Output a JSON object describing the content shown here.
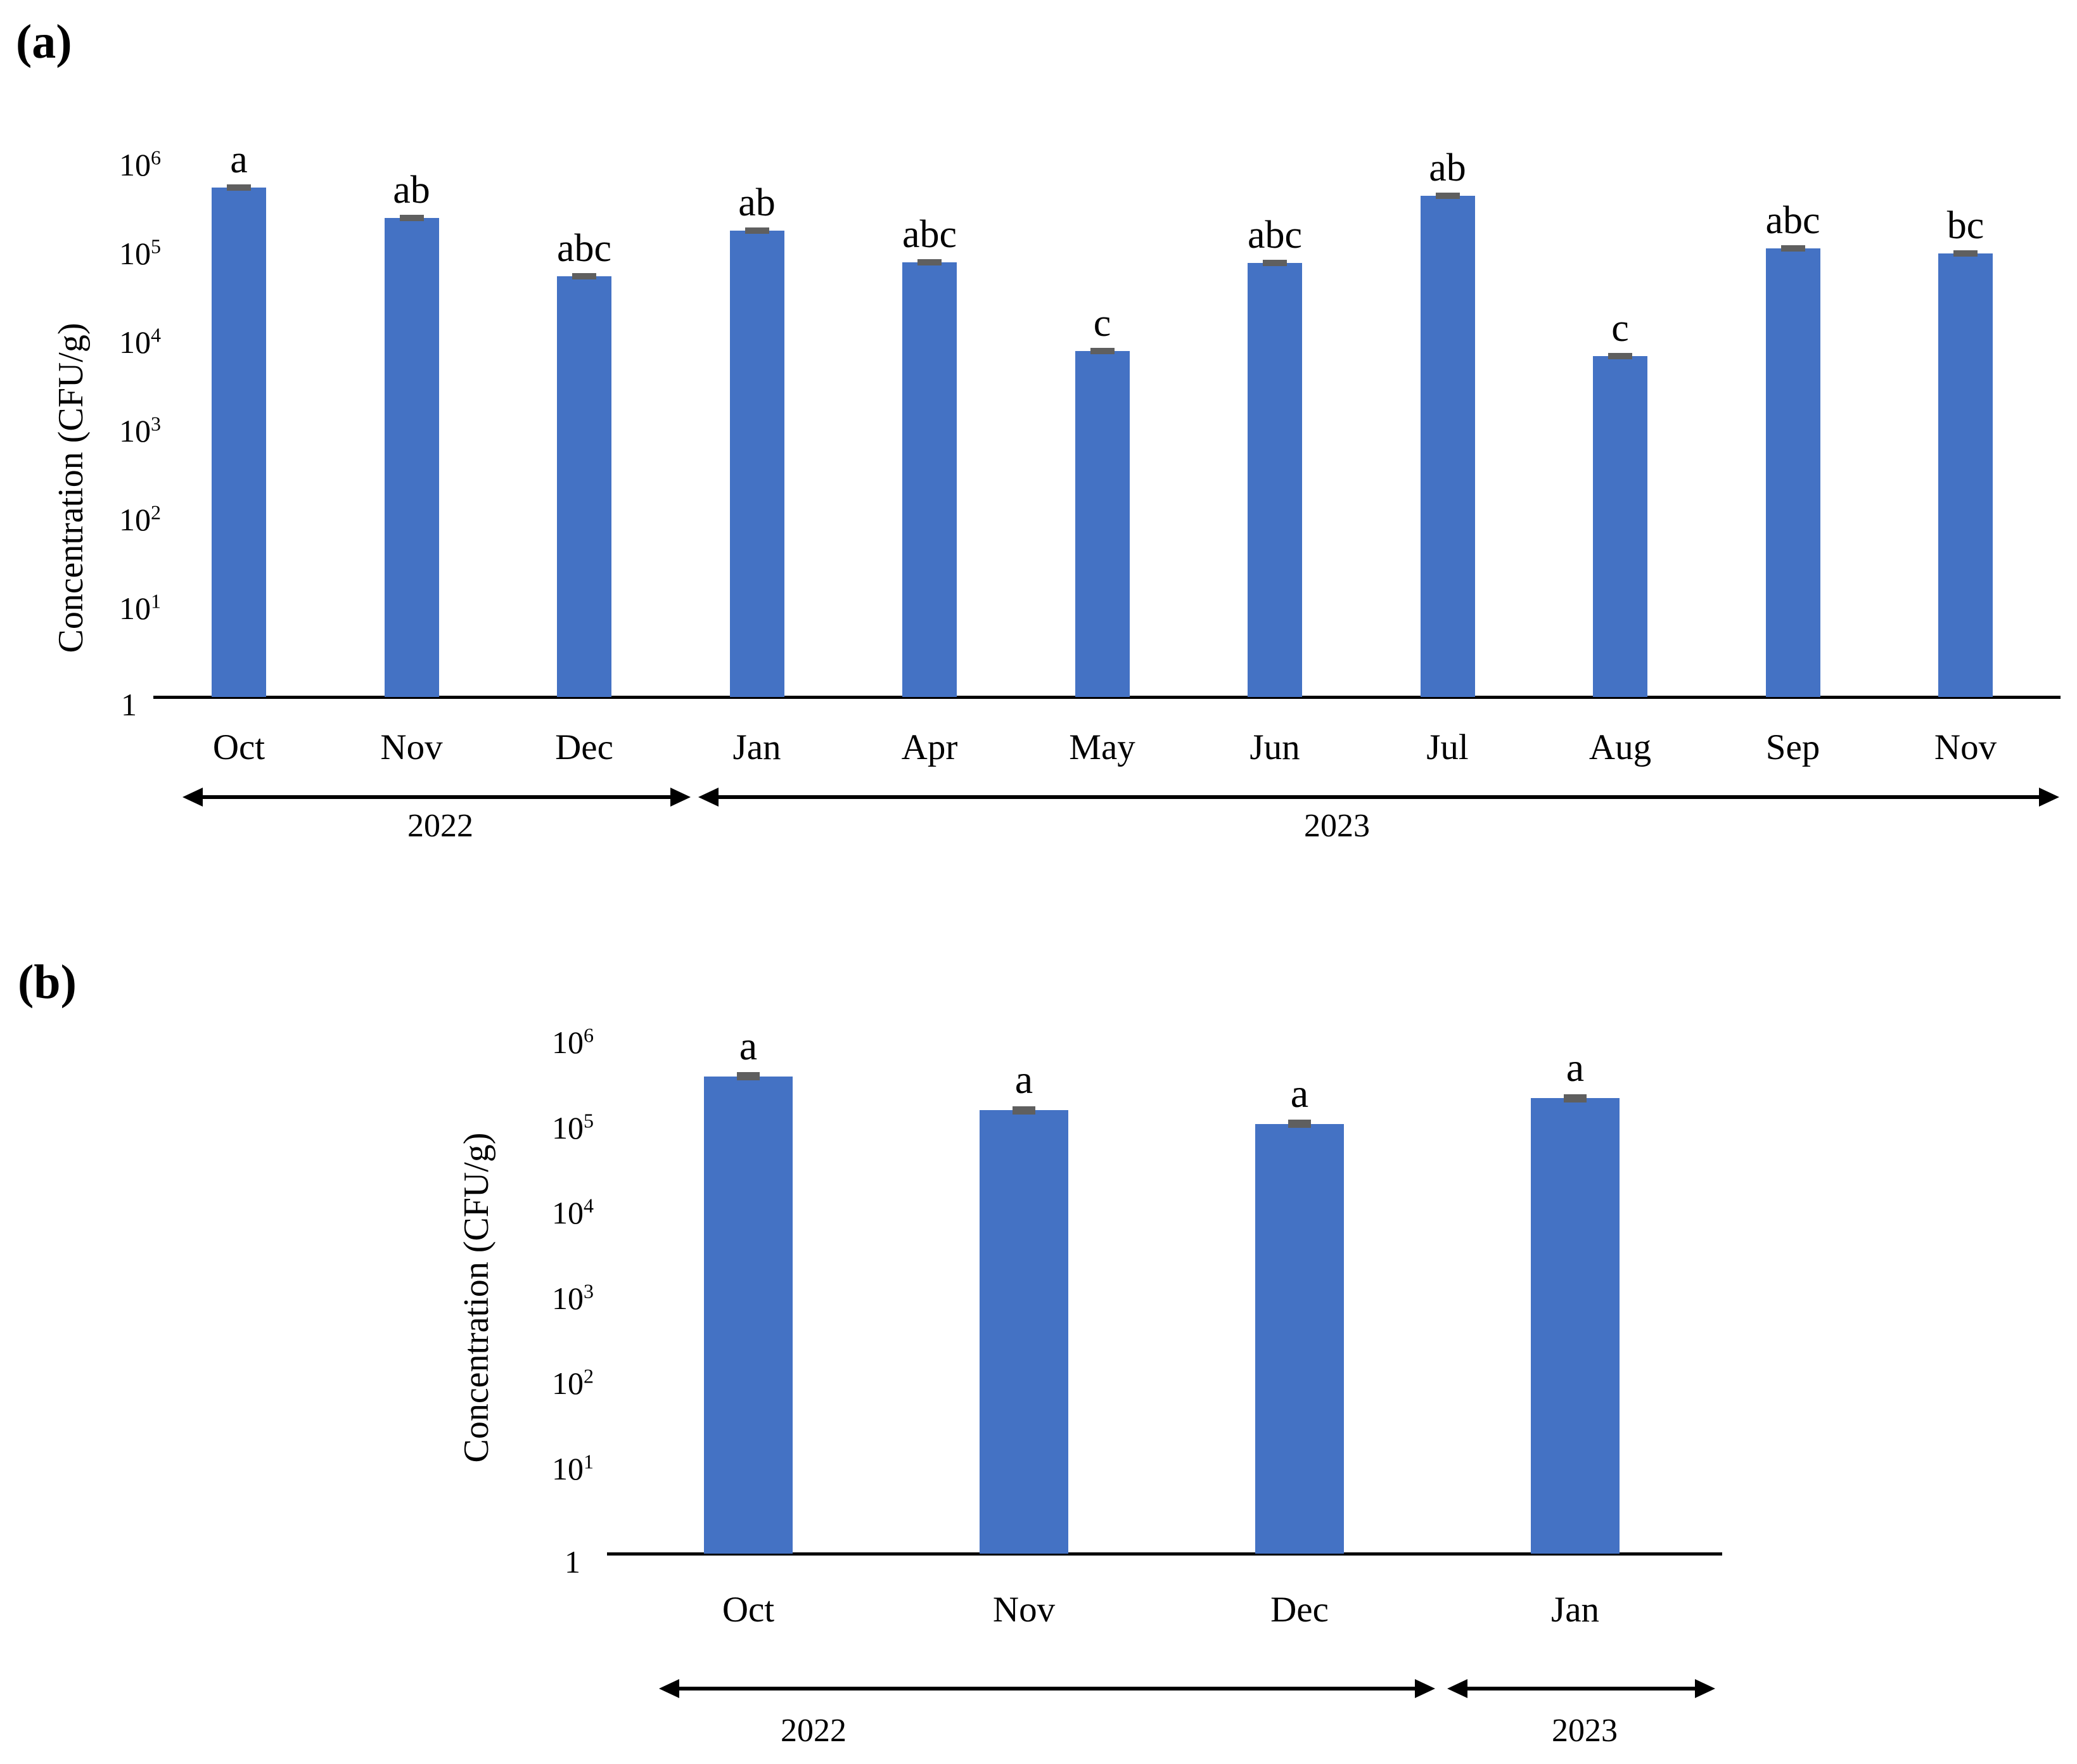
{
  "panel_labels": {
    "a": "(a)",
    "b": "(b)"
  },
  "colors": {
    "bar_fill": "#4472C4",
    "error_cap": "#5f5f5f",
    "axis_line": "#000000",
    "text": "#000000",
    "background": "#ffffff"
  },
  "chart_data": [
    {
      "panel": "a",
      "type": "bar",
      "title": "",
      "xlabel": "",
      "ylabel": "Concentration (CFU/g)",
      "yscale": "log",
      "ylim": [
        1,
        1000000
      ],
      "grid": false,
      "legend": false,
      "yticks": [
        {
          "base": "10",
          "exp": "6"
        },
        {
          "base": "10",
          "exp": "5"
        },
        {
          "base": "10",
          "exp": "4"
        },
        {
          "base": "10",
          "exp": "3"
        },
        {
          "base": "10",
          "exp": "2"
        },
        {
          "base": "10",
          "exp": "1"
        },
        {
          "base": "1",
          "exp": ""
        }
      ],
      "categories": [
        "Oct",
        "Nov",
        "Dec",
        "Jan",
        "Apr",
        "May",
        "Jun",
        "Jul",
        "Aug",
        "Sep",
        "Nov"
      ],
      "values": [
        550000,
        250000,
        55000,
        180000,
        80000,
        8000,
        78000,
        450000,
        7000,
        115000,
        100000
      ],
      "significance_letters": [
        "a",
        "ab",
        "abc",
        "ab",
        "abc",
        "c",
        "abc",
        "ab",
        "c",
        "abc",
        "bc"
      ],
      "error_caps": true,
      "year_groups": [
        {
          "label": "2022",
          "categories": [
            "Oct",
            "Nov",
            "Dec"
          ]
        },
        {
          "label": "2023",
          "categories": [
            "Jan",
            "Apr",
            "May",
            "Jun",
            "Jul",
            "Aug",
            "Sep",
            "Nov"
          ]
        }
      ]
    },
    {
      "panel": "b",
      "type": "bar",
      "title": "",
      "xlabel": "",
      "ylabel": "Concentration (CFU/g)",
      "yscale": "log",
      "ylim": [
        1,
        1000000
      ],
      "grid": false,
      "legend": false,
      "yticks": [
        {
          "base": "10",
          "exp": "6"
        },
        {
          "base": "10",
          "exp": "5"
        },
        {
          "base": "10",
          "exp": "4"
        },
        {
          "base": "10",
          "exp": "3"
        },
        {
          "base": "10",
          "exp": "2"
        },
        {
          "base": "10",
          "exp": "1"
        },
        {
          "base": "1",
          "exp": ""
        }
      ],
      "categories": [
        "Oct",
        "Nov",
        "Dec",
        "Jan"
      ],
      "values": [
        400000,
        160000,
        110000,
        220000
      ],
      "significance_letters": [
        "a",
        "a",
        "a",
        "a"
      ],
      "error_caps": true,
      "year_groups": [
        {
          "label": "2022",
          "categories": [
            "Oct",
            "Nov",
            "Dec"
          ]
        },
        {
          "label": "2023",
          "categories": [
            "Jan"
          ]
        }
      ]
    }
  ]
}
